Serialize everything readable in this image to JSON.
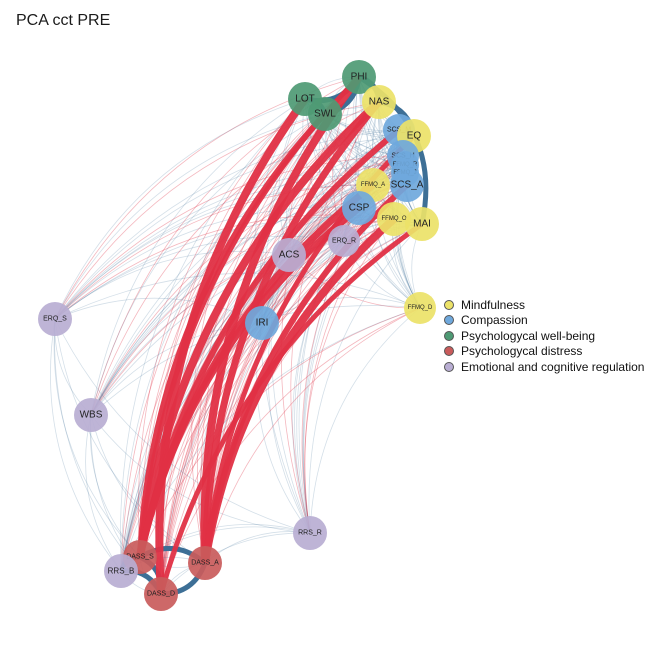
{
  "title": "PCA cct PRE",
  "groups": [
    {
      "id": "mind",
      "label": "Mindfulness",
      "color": "#ece268"
    },
    {
      "id": "comp",
      "label": "Compassion",
      "color": "#6fa8dc"
    },
    {
      "id": "well",
      "label": "Psychologycal well-being",
      "color": "#4e9a74"
    },
    {
      "id": "dist",
      "label": "Psychologycal distress",
      "color": "#c95b5b"
    },
    {
      "id": "emo",
      "label": "Emotional and cognitive regulation",
      "color": "#b9aed3"
    }
  ],
  "nodes": [
    {
      "id": "PHI",
      "group": "well"
    },
    {
      "id": "LOT",
      "group": "well"
    },
    {
      "id": "SWL",
      "group": "well"
    },
    {
      "id": "NAS",
      "group": "mind"
    },
    {
      "id": "SCS_M",
      "group": "comp"
    },
    {
      "id": "EQ",
      "group": "mind"
    },
    {
      "id": "SCS_H",
      "group": "comp"
    },
    {
      "id": "FFMQ_R",
      "group": "comp"
    },
    {
      "id": "FFMQ_J",
      "group": "comp"
    },
    {
      "id": "SCS_A",
      "group": "comp"
    },
    {
      "id": "FFMQ_A",
      "group": "mind"
    },
    {
      "id": "CSP",
      "group": "comp"
    },
    {
      "id": "FFMQ_O",
      "group": "mind"
    },
    {
      "id": "MAI",
      "group": "mind"
    },
    {
      "id": "ERQ_R",
      "group": "emo"
    },
    {
      "id": "ACS",
      "group": "emo"
    },
    {
      "id": "FFMQ_D",
      "group": "mind"
    },
    {
      "id": "IRI",
      "group": "comp"
    },
    {
      "id": "ERQ_S",
      "group": "emo"
    },
    {
      "id": "WBS",
      "group": "emo"
    },
    {
      "id": "RRS_R",
      "group": "emo"
    },
    {
      "id": "DASS_S",
      "group": "dist"
    },
    {
      "id": "DASS_A",
      "group": "dist"
    },
    {
      "id": "RRS_B",
      "group": "emo"
    },
    {
      "id": "DASS_D",
      "group": "dist"
    }
  ],
  "edge_colors": {
    "positive": "#3d6f96",
    "negative": "#e03045"
  },
  "strong_edges": [
    {
      "a": "PHI",
      "b": "LOT",
      "sign": "positive"
    },
    {
      "a": "PHI",
      "b": "SWL",
      "sign": "positive"
    },
    {
      "a": "LOT",
      "b": "SWL",
      "sign": "positive"
    },
    {
      "a": "PHI",
      "b": "NAS",
      "sign": "positive"
    },
    {
      "a": "PHI",
      "b": "MAI",
      "sign": "positive"
    },
    {
      "a": "NAS",
      "b": "EQ",
      "sign": "positive"
    },
    {
      "a": "DASS_S",
      "b": "DASS_A",
      "sign": "positive"
    },
    {
      "a": "DASS_S",
      "b": "DASS_D",
      "sign": "positive"
    },
    {
      "a": "DASS_A",
      "b": "DASS_D",
      "sign": "positive"
    },
    {
      "a": "RRS_B",
      "b": "DASS_D",
      "sign": "positive"
    },
    {
      "a": "RRS_B",
      "b": "DASS_S",
      "sign": "positive"
    },
    {
      "a": "PHI",
      "b": "DASS_A",
      "sign": "negative"
    },
    {
      "a": "PHI",
      "b": "DASS_S",
      "sign": "negative"
    },
    {
      "a": "SWL",
      "b": "DASS_S",
      "sign": "negative"
    },
    {
      "a": "NAS",
      "b": "DASS_A",
      "sign": "negative"
    },
    {
      "a": "NAS",
      "b": "DASS_S",
      "sign": "negative"
    },
    {
      "a": "EQ",
      "b": "DASS_A",
      "sign": "negative"
    },
    {
      "a": "SCS_M",
      "b": "DASS_S",
      "sign": "negative"
    },
    {
      "a": "FFMQ_A",
      "b": "DASS_S",
      "sign": "negative"
    },
    {
      "a": "FFMQ_O",
      "b": "DASS_A",
      "sign": "negative"
    },
    {
      "a": "MAI",
      "b": "DASS_D",
      "sign": "negative"
    },
    {
      "a": "SCS_A",
      "b": "DASS_A",
      "sign": "negative"
    },
    {
      "a": "CSP",
      "b": "DASS_S",
      "sign": "negative"
    },
    {
      "a": "LOT",
      "b": "DASS_D",
      "sign": "negative"
    }
  ]
}
